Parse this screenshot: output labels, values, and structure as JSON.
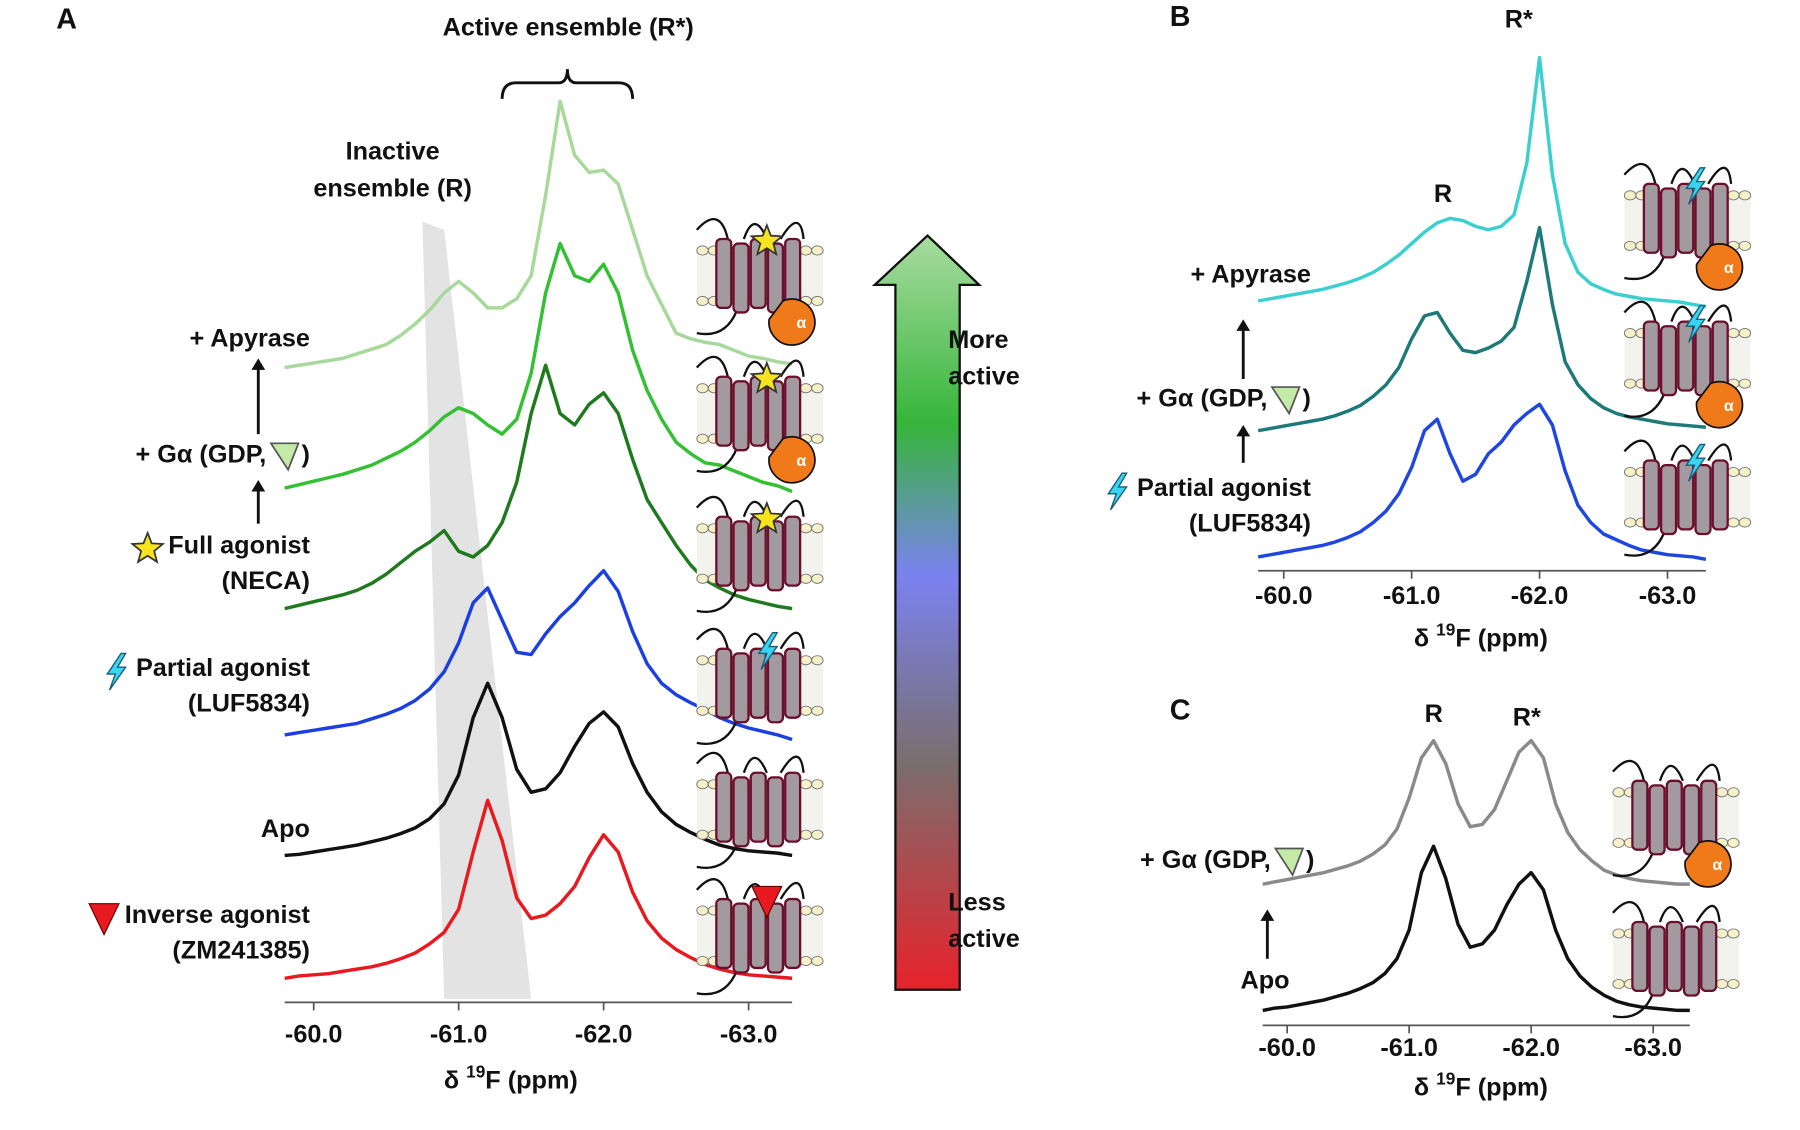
{
  "chart_data": [
    {
      "type": "line",
      "panel": "A",
      "galpha_symbol": "α",
      "x": [
        -59.8,
        -59.9,
        -60.0,
        -60.1,
        -60.2,
        -60.3,
        -60.4,
        -60.5,
        -60.6,
        -60.7,
        -60.8,
        -60.9,
        -61.0,
        -61.1,
        -61.2,
        -61.3,
        -61.4,
        -61.5,
        -61.6,
        -61.7,
        -61.8,
        -61.9,
        -62.0,
        -62.1,
        -62.2,
        -62.3,
        -62.4,
        -62.5,
        -62.6,
        -62.7,
        -62.8,
        -62.9,
        -63.0,
        -63.1,
        -63.2,
        -63.3
      ],
      "xlim": [
        -59.8,
        -63.3
      ],
      "xticks": [
        {
          "value": -60,
          "label": "-60.0"
        },
        {
          "value": -61,
          "label": "-61.0"
        },
        {
          "value": -62,
          "label": "-62.0"
        },
        {
          "value": -63,
          "label": "-63.0"
        }
      ],
      "x_label": {
        "pre": "δ ",
        "sup": "19",
        "post": "F (ppm)"
      },
      "series": [
        {
          "name": "Inverse agonist",
          "ligand": "(ZM241385)",
          "color": "#e8191f",
          "values": [
            0,
            2,
            3,
            4,
            6,
            8,
            10,
            13,
            17,
            22,
            30,
            40,
            60,
            110,
            155,
            120,
            70,
            52,
            55,
            65,
            80,
            105,
            125,
            110,
            75,
            50,
            35,
            25,
            18,
            12,
            8,
            5,
            3,
            2,
            1,
            0
          ]
        },
        {
          "name": "Apo",
          "color": "#111111",
          "values": [
            0,
            1,
            3,
            5,
            7,
            9,
            12,
            15,
            19,
            24,
            32,
            45,
            70,
            120,
            150,
            120,
            75,
            55,
            58,
            72,
            95,
            115,
            125,
            112,
            80,
            55,
            38,
            27,
            20,
            14,
            9,
            6,
            4,
            3,
            2,
            0
          ]
        },
        {
          "name": "Partial agonist",
          "ligand": "(LUF5834)",
          "color": "#1c3fe0",
          "values": [
            0,
            2,
            4,
            6,
            8,
            10,
            14,
            18,
            23,
            30,
            40,
            55,
            80,
            115,
            128,
            100,
            72,
            70,
            88,
            103,
            115,
            130,
            143,
            125,
            90,
            62,
            45,
            35,
            28,
            22,
            15,
            10,
            6,
            3,
            0,
            -4
          ]
        },
        {
          "name": "Full agonist",
          "ligand": "(NECA)",
          "color": "#1f7a1f",
          "values": [
            0,
            3,
            6,
            9,
            12,
            16,
            22,
            30,
            40,
            50,
            58,
            68,
            50,
            45,
            55,
            75,
            110,
            170,
            212,
            170,
            160,
            178,
            188,
            170,
            130,
            95,
            75,
            55,
            38,
            25,
            18,
            12,
            8,
            5,
            2,
            0
          ]
        },
        {
          "name": "+ Gα (GDP,",
          "name_end": ")",
          "color": "#33c033",
          "values": [
            0,
            3,
            6,
            9,
            12,
            16,
            20,
            26,
            32,
            40,
            50,
            62,
            70,
            65,
            55,
            47,
            60,
            100,
            170,
            213,
            185,
            180,
            195,
            170,
            120,
            85,
            60,
            40,
            30,
            22,
            20,
            15,
            10,
            5,
            2,
            -3
          ]
        },
        {
          "name": "+ Apyrase",
          "color": "#a6d99a",
          "values": [
            0,
            2,
            4,
            6,
            8,
            12,
            16,
            20,
            28,
            38,
            50,
            65,
            75,
            65,
            52,
            52,
            60,
            80,
            150,
            232,
            185,
            170,
            172,
            160,
            120,
            80,
            55,
            30,
            25,
            22,
            20,
            15,
            10,
            8,
            5,
            3
          ]
        }
      ],
      "annotations": {
        "active": "Active ensemble (R*)",
        "active_span": [
          -61.3,
          -62.2
        ],
        "inactive": [
          "Inactive",
          "ensemble (R)"
        ],
        "inactive_band": {
          "top": [
            -60.75,
            -60.9
          ],
          "bottom": [
            -60.9,
            -61.5
          ]
        },
        "scale_top": [
          "More",
          "active"
        ],
        "scale_bottom": [
          "Less",
          "active"
        ]
      }
    },
    {
      "type": "line",
      "panel": "B",
      "galpha_symbol": "α",
      "x": [
        -59.8,
        -59.9,
        -60.0,
        -60.1,
        -60.2,
        -60.3,
        -60.4,
        -60.5,
        -60.6,
        -60.7,
        -60.8,
        -60.9,
        -61.0,
        -61.1,
        -61.2,
        -61.3,
        -61.4,
        -61.5,
        -61.6,
        -61.7,
        -61.8,
        -61.9,
        -62.0,
        -62.1,
        -62.2,
        -62.3,
        -62.4,
        -62.5,
        -62.6,
        -62.7,
        -62.8,
        -62.9,
        -63.0,
        -63.1,
        -63.2,
        -63.3
      ],
      "xlim": [
        -59.8,
        -63.3
      ],
      "xticks": [
        {
          "value": -60,
          "label": "-60.0"
        },
        {
          "value": -61,
          "label": "-61.0"
        },
        {
          "value": -62,
          "label": "-62.0"
        },
        {
          "value": -63,
          "label": "-63.0"
        }
      ],
      "x_label": {
        "pre": "δ ",
        "sup": "19",
        "post": "F (ppm)"
      },
      "series": [
        {
          "name": "Partial agonist",
          "ligand": "(LUF5834)",
          "color": "#1f46e0",
          "values": [
            0,
            2,
            4,
            6,
            8,
            10,
            13,
            17,
            22,
            30,
            40,
            55,
            78,
            110,
            120,
            90,
            66,
            72,
            90,
            100,
            115,
            125,
            133,
            115,
            75,
            45,
            30,
            20,
            15,
            10,
            6,
            4,
            2,
            1,
            0,
            -2
          ]
        },
        {
          "name": "+ Gα (GDP,",
          "name_end": ")",
          "color": "#1d7a78",
          "values": [
            0,
            2,
            4,
            6,
            8,
            10,
            13,
            17,
            22,
            30,
            40,
            55,
            80,
            100,
            103,
            85,
            70,
            68,
            72,
            78,
            90,
            130,
            177,
            110,
            60,
            40,
            28,
            20,
            15,
            12,
            10,
            8,
            6,
            5,
            4,
            3
          ]
        },
        {
          "name": "+ Apyrase",
          "color": "#3ccfcf",
          "values": [
            0,
            2,
            4,
            6,
            8,
            10,
            13,
            16,
            20,
            25,
            32,
            40,
            50,
            60,
            68,
            72,
            70,
            65,
            62,
            65,
            75,
            120,
            212,
            110,
            50,
            25,
            15,
            10,
            6,
            4,
            2,
            1,
            0,
            -1,
            -3,
            -5
          ]
        }
      ],
      "peak_labels": [
        "R",
        "R*"
      ]
    },
    {
      "type": "line",
      "panel": "C",
      "galpha_symbol": "α",
      "x": [
        -59.8,
        -59.9,
        -60.0,
        -60.1,
        -60.2,
        -60.3,
        -60.4,
        -60.5,
        -60.6,
        -60.7,
        -60.8,
        -60.9,
        -61.0,
        -61.1,
        -61.2,
        -61.3,
        -61.4,
        -61.5,
        -61.6,
        -61.7,
        -61.8,
        -61.9,
        -62.0,
        -62.1,
        -62.2,
        -62.3,
        -62.4,
        -62.5,
        -62.6,
        -62.7,
        -62.8,
        -62.9,
        -63.0,
        -63.1,
        -63.2,
        -63.3
      ],
      "xlim": [
        -59.8,
        -63.3
      ],
      "xticks": [
        {
          "value": -60,
          "label": "-60.0"
        },
        {
          "value": -61,
          "label": "-61.0"
        },
        {
          "value": -62,
          "label": "-62.0"
        },
        {
          "value": -63,
          "label": "-63.0"
        }
      ],
      "x_label": {
        "pre": "δ ",
        "sup": "19",
        "post": "F (ppm)"
      },
      "series": [
        {
          "name": "Apo",
          "color": "#111111",
          "values": [
            0,
            2,
            3,
            5,
            7,
            9,
            12,
            15,
            19,
            24,
            32,
            45,
            70,
            120,
            143,
            115,
            75,
            55,
            58,
            70,
            92,
            110,
            120,
            105,
            70,
            45,
            30,
            20,
            13,
            8,
            5,
            3,
            2,
            1,
            0,
            0
          ]
        },
        {
          "name": "+ Gα (GDP,",
          "name_end": ")",
          "color": "#8a8a8a",
          "values": [
            0,
            2,
            4,
            6,
            8,
            10,
            13,
            16,
            20,
            26,
            34,
            48,
            75,
            110,
            125,
            105,
            70,
            50,
            52,
            65,
            90,
            115,
            125,
            110,
            70,
            45,
            30,
            20,
            12,
            8,
            5,
            3,
            2,
            1,
            0,
            0
          ]
        }
      ],
      "peak_labels": [
        "R",
        "R*"
      ]
    }
  ]
}
